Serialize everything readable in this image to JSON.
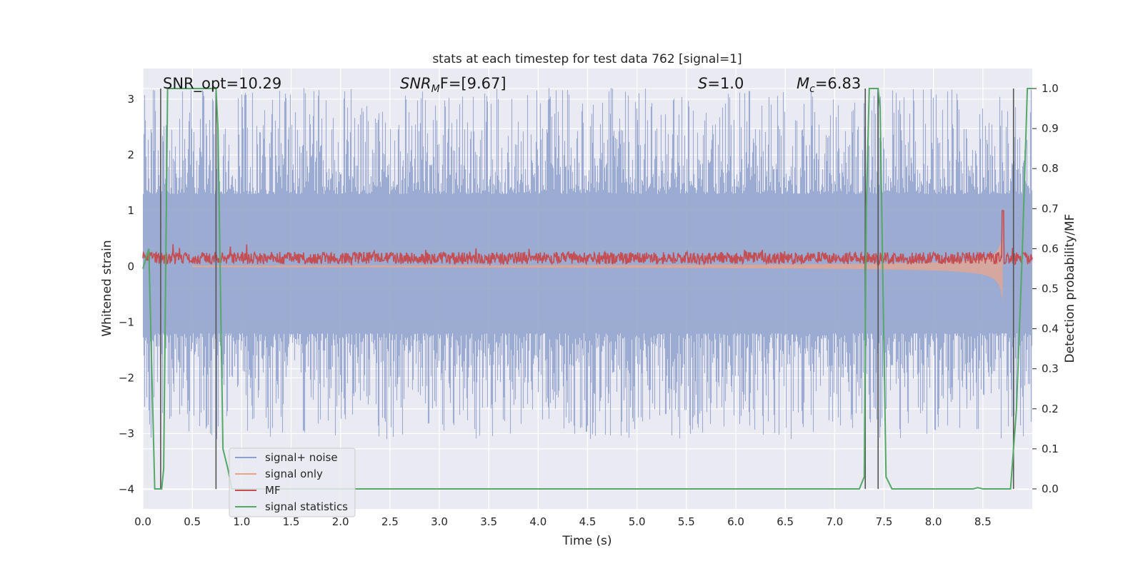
{
  "chart_data": {
    "type": "line",
    "title": "stats at each timestep for test data 762 [signal=1]",
    "xlabel": "Time (s)",
    "ylabel": "Whitened strain",
    "y2label": "Detection probability/MF",
    "xlim": [
      0.0,
      9.0
    ],
    "ylim": [
      -4.35,
      3.55
    ],
    "y2lim": [
      -0.05,
      1.05
    ],
    "xticks": [
      "0.0",
      "0.5",
      "1.0",
      "1.5",
      "2.0",
      "2.5",
      "3.0",
      "3.5",
      "4.0",
      "4.5",
      "5.0",
      "5.5",
      "6.0",
      "6.5",
      "7.0",
      "7.5",
      "8.0",
      "8.5"
    ],
    "yticks": [
      "3",
      "2",
      "1",
      "0",
      "−1",
      "−2",
      "−3",
      "−4"
    ],
    "y2ticks": [
      "1.0",
      "0.9",
      "0.8",
      "0.7",
      "0.6",
      "0.5",
      "0.4",
      "0.3",
      "0.2",
      "0.1",
      "0.0"
    ],
    "grid": true,
    "legend_position": "lower-left",
    "annotations": {
      "snr_opt": "SNR_opt=10.29",
      "snr_mf_base": "SNR",
      "snr_mf_sub": "M",
      "snr_mf_rest": "F=[9.67]",
      "s_label_italic": "S",
      "s_label_rest": "=1.0",
      "mc_base": "M",
      "mc_sub": "c",
      "mc_rest": "=6.83"
    },
    "series": [
      {
        "name": "signal+ noise",
        "color": "#8da0cb",
        "axis": "left",
        "description_values": {
          "approx_range": [
            -4.05,
            3.2
          ]
        }
      },
      {
        "name": "signal only",
        "color": "#e8a58c",
        "axis": "left",
        "chirp_end_time": 8.7,
        "peak_amplitude": 1.0
      },
      {
        "name": "MF",
        "color": "#c44e52",
        "axis": "left",
        "baseline": 0.15,
        "peak": {
          "x": 8.7,
          "y": 1.0
        }
      },
      {
        "name": "signal statistics",
        "color": "#55a868",
        "axis": "right",
        "x": [
          0.0,
          0.06,
          0.12,
          0.19,
          0.21,
          0.25,
          0.3,
          0.5,
          0.7,
          0.74,
          0.76,
          0.81,
          0.86,
          0.9,
          2.0,
          4.0,
          6.0,
          7.0,
          7.25,
          7.3,
          7.32,
          7.35,
          7.44,
          7.46,
          7.52,
          7.58,
          7.7,
          8.0,
          8.4,
          8.45,
          8.5,
          8.6,
          8.78,
          8.84,
          8.9,
          8.95,
          9.0
        ],
        "y": [
          0.55,
          0.6,
          0.0,
          0.0,
          0.05,
          1.0,
          1.0,
          1.0,
          1.0,
          1.0,
          0.9,
          0.1,
          0.05,
          0.0,
          0.0,
          0.0,
          0.0,
          0.0,
          0.0,
          0.03,
          0.7,
          1.0,
          1.0,
          0.95,
          0.03,
          0.0,
          0.0,
          0.0,
          0.0,
          0.003,
          0.0,
          0.0,
          0.0,
          0.2,
          0.6,
          1.0,
          1.0
        ]
      }
    ],
    "vertical_lines_x": [
      0.18,
      0.74,
      7.31,
      7.44,
      8.81
    ],
    "colors": {
      "background": "#eaeaf2",
      "grid": "#ffffff",
      "vline": "#555555"
    }
  }
}
